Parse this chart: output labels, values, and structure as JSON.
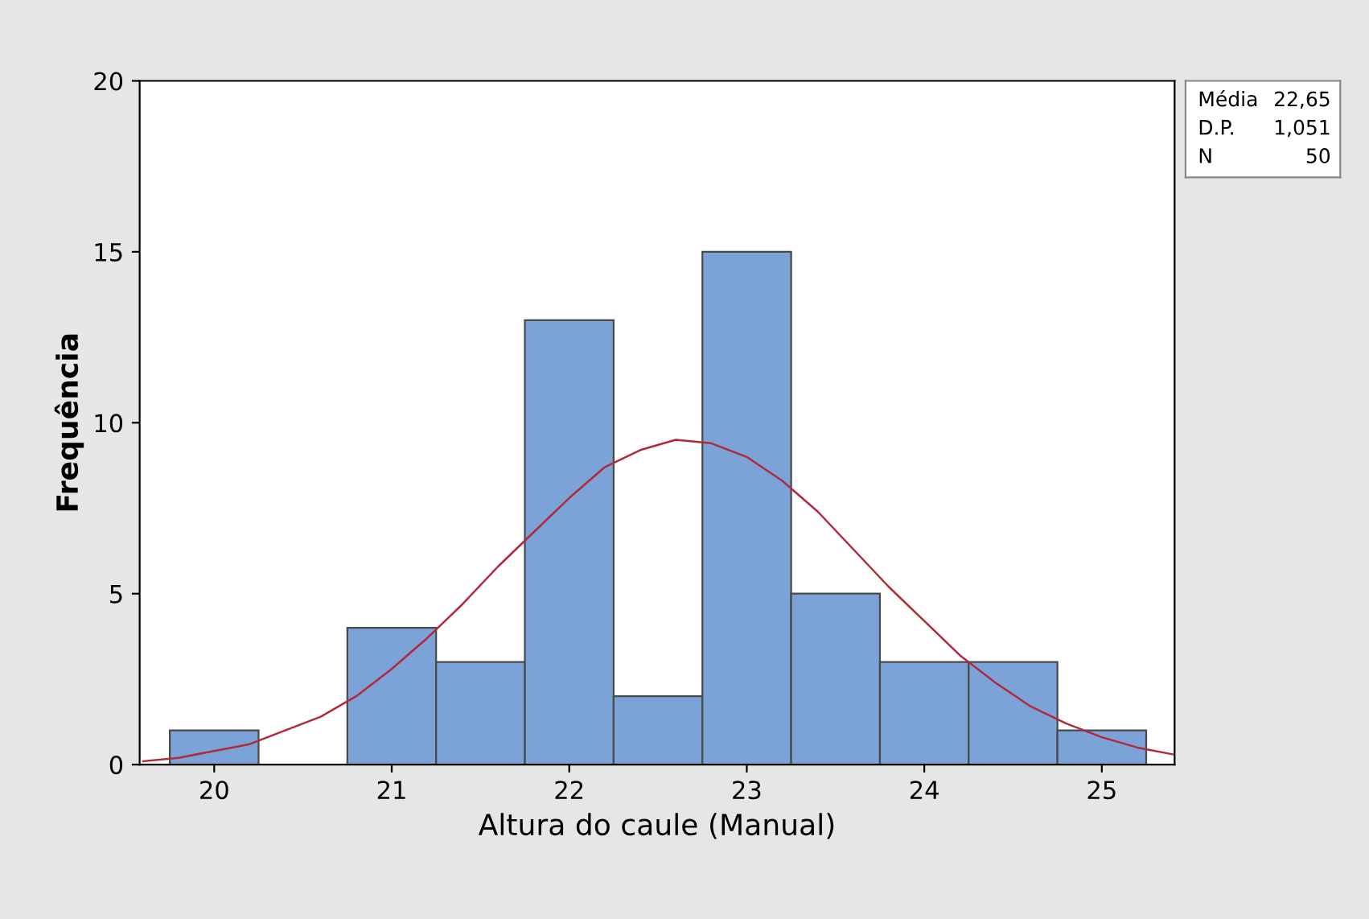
{
  "chart_data": {
    "type": "histogram",
    "xlabel": "Altura do caule (Manual)",
    "ylabel": "Frequência",
    "bins": [
      19.75,
      20.25,
      20.75,
      21.25,
      21.75,
      22.25,
      22.75,
      23.25,
      23.75,
      24.25,
      24.75,
      25.25
    ],
    "values": [
      1,
      0,
      4,
      3,
      13,
      2,
      15,
      5,
      3,
      3,
      1
    ],
    "color": "#7ba3d8",
    "series": [
      {
        "type": "line",
        "color": "#b22a3a",
        "x": [
          19.6,
          19.8,
          20.0,
          20.2,
          20.4,
          20.6,
          20.8,
          21.0,
          21.2,
          21.4,
          21.6,
          21.8,
          22.0,
          22.2,
          22.4,
          22.6,
          22.8,
          23.0,
          23.2,
          23.4,
          23.6,
          23.8,
          24.0,
          24.2,
          24.4,
          24.6,
          24.8,
          25.0,
          25.2,
          25.4
        ],
        "values": [
          0.1,
          0.2,
          0.4,
          0.6,
          1.0,
          1.4,
          2.0,
          2.8,
          3.7,
          4.7,
          5.8,
          6.8,
          7.8,
          8.7,
          9.2,
          9.5,
          9.4,
          9.0,
          8.3,
          7.4,
          6.3,
          5.2,
          4.2,
          3.2,
          2.4,
          1.7,
          1.2,
          0.8,
          0.5,
          0.3
        ]
      }
    ],
    "xlim": [
      19.58,
      25.41
    ],
    "xticks": [
      20,
      21,
      22,
      23,
      24,
      25
    ],
    "ylim": [
      0,
      20
    ],
    "yticks": [
      0,
      5,
      10,
      15,
      20
    ],
    "grid": false,
    "legend": false,
    "marker": "none",
    "line_style": "solid",
    "annotations": [
      "Média 22,65",
      "D.P. 1,051",
      "N 50"
    ]
  }
}
